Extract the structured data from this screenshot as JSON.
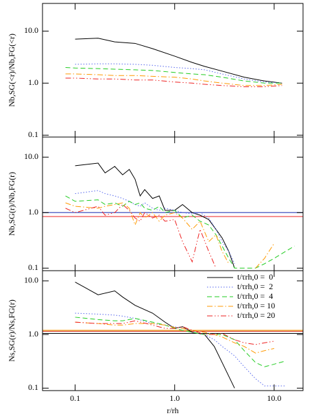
{
  "chart_data": [
    {
      "type": "line",
      "xscale": "log",
      "yscale": "log",
      "ylabel": "Nb,SG(<r)/Nb,FG(<r)",
      "xlim": [
        0.047,
        19.5
      ],
      "ylim": [
        0.092,
        34
      ],
      "xticks": [
        0.1,
        {
          "value": 1,
          "label": "1.0"
        },
        {
          "value": 10,
          "label": "10.0"
        }
      ],
      "yticks": [
        0.1,
        {
          "value": 1,
          "label": "1.0"
        },
        {
          "value": 10,
          "label": "10.0"
        }
      ],
      "x": [
        0.08,
        0.1,
        0.17,
        0.25,
        0.4,
        0.6,
        1.0,
        1.5,
        2,
        3,
        5,
        8,
        12
      ],
      "series": [
        {
          "color": "#000000",
          "dash": "solid",
          "values": [
            null,
            7.0,
            7.3,
            6.2,
            5.8,
            4.6,
            3.3,
            2.5,
            2.1,
            1.7,
            1.3,
            1.1,
            1.0
          ]
        },
        {
          "color": "#5566ee",
          "dash": "dotted",
          "values": [
            null,
            2.3,
            2.35,
            2.35,
            2.3,
            2.2,
            2.0,
            1.9,
            1.8,
            1.5,
            1.2,
            1.05,
            1.0
          ]
        },
        {
          "color": "#22cc22",
          "dash": "dashed",
          "values": [
            2.0,
            1.95,
            1.9,
            1.85,
            1.8,
            1.75,
            1.6,
            1.5,
            1.45,
            1.3,
            1.1,
            1.0,
            1.0
          ]
        },
        {
          "color": "#ff9900",
          "dash": "dashdot",
          "values": [
            1.5,
            1.5,
            1.45,
            1.4,
            1.4,
            1.35,
            1.3,
            1.2,
            1.1,
            1.0,
            0.9,
            0.9,
            0.95
          ]
        },
        {
          "color": "#ee2222",
          "dash": "dashdotdot",
          "values": [
            1.25,
            1.25,
            1.2,
            1.2,
            1.15,
            1.15,
            1.05,
            1.0,
            0.95,
            0.9,
            0.85,
            0.85,
            0.9
          ]
        }
      ],
      "hlines": []
    },
    {
      "type": "line",
      "xscale": "log",
      "yscale": "log",
      "ylabel": "Nb,SG(r)/Nb,FG(r)",
      "xlim": [
        0.047,
        19.5
      ],
      "ylim": [
        0.09,
        23
      ],
      "xticks": [
        0.1,
        {
          "value": 1,
          "label": "1.0"
        },
        {
          "value": 10,
          "label": "10.0"
        }
      ],
      "yticks": [
        0.1,
        {
          "value": 1,
          "label": "1.0"
        },
        {
          "value": 10,
          "label": "10.0"
        }
      ],
      "x": [
        0.08,
        0.1,
        0.17,
        0.2,
        0.25,
        0.3,
        0.35,
        0.4,
        0.45,
        0.5,
        0.6,
        0.7,
        0.8,
        1.0,
        1.2,
        1.5,
        1.8,
        2.2,
        2.6,
        3,
        3.5,
        4,
        5,
        6.5,
        8,
        10,
        13,
        16
      ],
      "series": [
        {
          "color": "#000000",
          "dash": "solid",
          "values": [
            null,
            7.0,
            7.8,
            5.2,
            6.8,
            4.8,
            6.0,
            4.0,
            2.0,
            2.6,
            1.8,
            2.0,
            1.1,
            1.1,
            1.4,
            1.0,
            0.9,
            0.75,
            0.5,
            0.35,
            0.2,
            0.1,
            null,
            null,
            null,
            null,
            null,
            null
          ]
        },
        {
          "color": "#5566ee",
          "dash": "dotted",
          "values": [
            null,
            2.2,
            2.5,
            2.2,
            2.0,
            1.8,
            1.6,
            1.4,
            1.3,
            1.5,
            1.2,
            1.1,
            1.2,
            1.1,
            1.0,
            0.95,
            1.0,
            0.8,
            0.5,
            0.3,
            0.2,
            0.12,
            null,
            null,
            null,
            null,
            null,
            null
          ]
        },
        {
          "color": "#22cc22",
          "dash": "dashed",
          "values": [
            2.0,
            1.6,
            1.7,
            1.4,
            1.5,
            1.3,
            1.6,
            1.4,
            1.5,
            1.2,
            1.1,
            1.3,
            1.0,
            1.1,
            0.8,
            0.9,
            0.7,
            0.6,
            0.4,
            0.25,
            0.15,
            0.1,
            0.1,
            0.1,
            0.12,
            0.15,
            0.2,
            0.25
          ]
        },
        {
          "color": "#ff9900",
          "dash": "dashdot",
          "values": [
            1.5,
            1.3,
            1.2,
            1.3,
            1.4,
            1.5,
            1.2,
            0.6,
            1.0,
            0.8,
            1.0,
            0.7,
            0.9,
            1.0,
            0.8,
            0.5,
            0.7,
            0.3,
            0.4,
            0.2,
            0.12,
            null,
            null,
            0.1,
            0.15,
            0.28,
            null,
            null
          ]
        },
        {
          "color": "#ee2222",
          "dash": "dashdotdot",
          "values": [
            1.2,
            1.0,
            1.3,
            0.9,
            1.0,
            1.4,
            1.1,
            0.8,
            0.7,
            1.0,
            0.8,
            0.9,
            0.7,
            0.75,
            0.3,
            0.13,
            0.5,
            0.2,
            0.1,
            null,
            null,
            null,
            null,
            null,
            null,
            null,
            null,
            null
          ]
        }
      ],
      "hlines": [
        {
          "value": 1.0,
          "color": "#000000"
        },
        {
          "value": 1.0,
          "color": "#5566ee"
        },
        {
          "value": 0.85,
          "color": "#ff9900"
        },
        {
          "value": 0.85,
          "color": "#ee2222"
        }
      ]
    },
    {
      "type": "line",
      "xscale": "log",
      "yscale": "log",
      "ylabel": "Ns,SG(r)/Ns,FG(r)",
      "xlabel": "r/rh",
      "xlim": [
        0.047,
        19.5
      ],
      "ylim": [
        0.09,
        15.5
      ],
      "xticks": [
        0.1,
        {
          "value": 1,
          "label": "1.0"
        },
        {
          "value": 10,
          "label": "10.0"
        }
      ],
      "yticks": [
        0.1,
        {
          "value": 1,
          "label": "1.0"
        },
        {
          "value": 10,
          "label": "10.0"
        }
      ],
      "legend": "upper right",
      "x": [
        0.1,
        0.17,
        0.25,
        0.3,
        0.4,
        0.6,
        0.8,
        1.0,
        1.2,
        1.5,
        2,
        2.5,
        3,
        4,
        5,
        6.5,
        8,
        10,
        13
      ],
      "series": [
        {
          "name": "t/τrh,0 =  0",
          "color": "#000000",
          "dash": "solid",
          "values": [
            9.5,
            5.5,
            6.5,
            5.0,
            3.5,
            2.5,
            1.7,
            1.3,
            1.4,
            1.1,
            1.0,
            0.6,
            0.3,
            0.1,
            null,
            null,
            null,
            null,
            null
          ]
        },
        {
          "name": "t/τrh,0 =  2",
          "color": "#5566ee",
          "dash": "dotted",
          "values": [
            2.5,
            2.4,
            2.3,
            2.2,
            2.0,
            1.6,
            1.5,
            1.4,
            1.3,
            1.2,
            1.0,
            0.8,
            0.6,
            0.4,
            0.25,
            0.15,
            0.11,
            0.11,
            0.11
          ]
        },
        {
          "name": "t/τrh,0 =  4",
          "color": "#22cc22",
          "dash": "dashed",
          "values": [
            2.1,
            1.9,
            1.8,
            1.8,
            2.0,
            1.7,
            1.5,
            1.3,
            1.2,
            1.1,
            1.0,
            1.0,
            1.0,
            0.8,
            0.5,
            0.3,
            0.25,
            0.28,
            0.32
          ]
        },
        {
          "name": "t/τrh,0 = 10",
          "color": "#ff9900",
          "dash": "dashdot",
          "values": [
            1.7,
            1.6,
            1.5,
            1.5,
            1.6,
            1.6,
            1.5,
            1.35,
            1.3,
            1.2,
            1.1,
            1.0,
            0.9,
            0.7,
            0.6,
            0.45,
            0.5,
            0.55,
            null
          ]
        },
        {
          "name": "t/τrh,0 = 20",
          "color": "#ee2222",
          "dash": "dashdotdot",
          "values": [
            1.7,
            1.6,
            1.6,
            1.6,
            1.8,
            1.5,
            1.3,
            1.3,
            1.4,
            1.2,
            1.0,
            1.0,
            1.05,
            0.8,
            0.7,
            0.65,
            0.7,
            0.75,
            null
          ]
        }
      ],
      "hlines": [
        {
          "value": 1.05,
          "color": "#000000"
        },
        {
          "value": 1.2,
          "color": "#5566ee"
        },
        {
          "value": 1.15,
          "color": "#22cc22"
        },
        {
          "value": 1.2,
          "color": "#ff9900"
        },
        {
          "value": 1.15,
          "color": "#ee2222"
        }
      ]
    }
  ]
}
